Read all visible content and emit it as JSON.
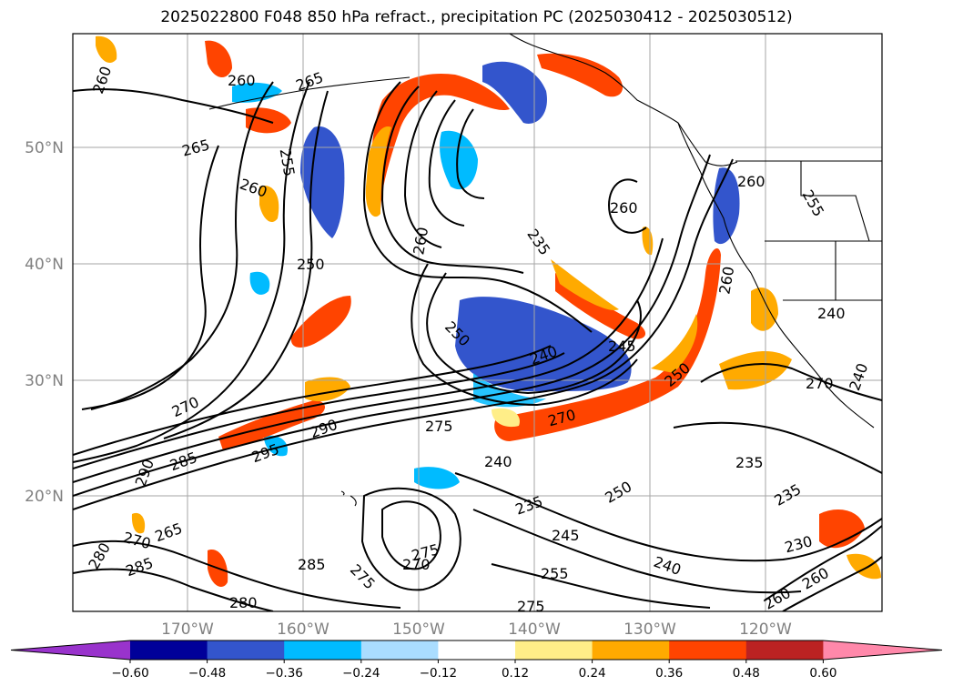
{
  "title": "2025022800 F048 850 hPa refract., precipitation PC (2025030412 - 2025030512)",
  "lat_labels": [
    "50°N",
    "40°N",
    "30°N",
    "20°N"
  ],
  "lon_labels": [
    "170°W",
    "160°W",
    "150°W",
    "140°W",
    "130°W",
    "120°W"
  ],
  "colorbar": {
    "colors": [
      "#9933cc",
      "#000099",
      "#3355cc",
      "#00bbff",
      "#aaddff",
      "#ffffff",
      "#ffee88",
      "#ffaa00",
      "#ff4400",
      "#bb2222",
      "#ff88aa"
    ],
    "tick_labels": [
      "−0.60",
      "−0.48",
      "−0.36",
      "−0.24",
      "−0.12",
      "0.12",
      "0.24",
      "0.36",
      "0.48",
      "0.60"
    ]
  },
  "contour_labels": [
    {
      "text": "260"
    },
    {
      "text": "260"
    },
    {
      "text": "265"
    },
    {
      "text": "265"
    },
    {
      "text": "255"
    },
    {
      "text": "260"
    },
    {
      "text": "250"
    },
    {
      "text": "260"
    },
    {
      "text": "235"
    },
    {
      "text": "260"
    },
    {
      "text": "260"
    },
    {
      "text": "255"
    },
    {
      "text": "250"
    },
    {
      "text": "260"
    },
    {
      "text": "245"
    },
    {
      "text": "240"
    },
    {
      "text": "250"
    },
    {
      "text": "240"
    },
    {
      "text": "270"
    },
    {
      "text": "290"
    },
    {
      "text": "295"
    },
    {
      "text": "285"
    },
    {
      "text": "290"
    },
    {
      "text": "270"
    },
    {
      "text": "275"
    },
    {
      "text": "270"
    },
    {
      "text": "240"
    },
    {
      "text": "235"
    },
    {
      "text": "250"
    },
    {
      "text": "235"
    },
    {
      "text": "235"
    },
    {
      "text": "245"
    },
    {
      "text": "265"
    },
    {
      "text": "270"
    },
    {
      "text": "280"
    },
    {
      "text": "285"
    },
    {
      "text": "275"
    },
    {
      "text": "285"
    },
    {
      "text": "270"
    },
    {
      "text": "275"
    },
    {
      "text": "255"
    },
    {
      "text": "240"
    },
    {
      "text": "230"
    },
    {
      "text": "260"
    },
    {
      "text": "280"
    },
    {
      "text": "275"
    },
    {
      "text": "260"
    },
    {
      "text": "240"
    }
  ]
}
